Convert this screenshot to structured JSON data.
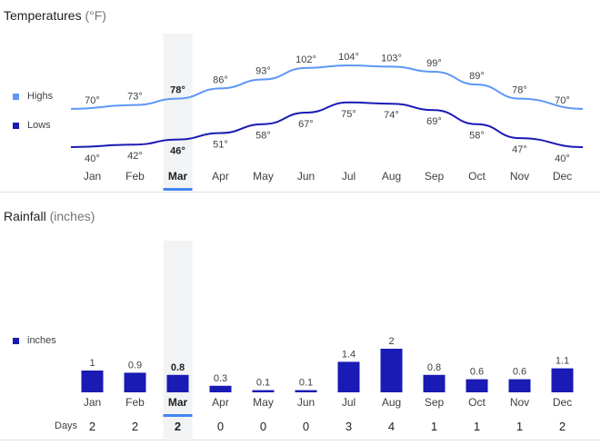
{
  "temperature": {
    "title": "Temperatures",
    "unit": "(°F)",
    "legend": [
      {
        "label": "Highs",
        "color": "#5e97f6"
      },
      {
        "label": "Lows",
        "color": "#1a1ab4"
      }
    ],
    "selected_month": "Mar"
  },
  "rainfall": {
    "title": "Rainfall",
    "unit": "(inches)",
    "legend_label": "inches",
    "bar_color": "#1a1ab4",
    "days_label": "Days",
    "days": [
      2,
      2,
      2,
      0,
      0,
      0,
      3,
      4,
      1,
      1,
      1,
      2
    ]
  },
  "chart_data": [
    {
      "type": "line",
      "title": "Temperatures",
      "categories": [
        "Jan",
        "Feb",
        "Mar",
        "Apr",
        "May",
        "Jun",
        "Jul",
        "Aug",
        "Sep",
        "Oct",
        "Nov",
        "Dec"
      ],
      "series": [
        {
          "name": "Highs",
          "values": [
            70,
            73,
            78,
            86,
            93,
            102,
            104,
            103,
            99,
            89,
            78,
            70
          ],
          "color": "#5e97f6"
        },
        {
          "name": "Lows",
          "values": [
            40,
            42,
            46,
            51,
            58,
            67,
            75,
            74,
            69,
            58,
            47,
            40
          ],
          "color": "#1a1ab4"
        }
      ],
      "value_suffix": "°",
      "grid": false,
      "legend_position": "left"
    },
    {
      "type": "bar",
      "title": "Rainfall",
      "categories": [
        "Jan",
        "Feb",
        "Mar",
        "Apr",
        "May",
        "Jun",
        "Jul",
        "Aug",
        "Sep",
        "Oct",
        "Nov",
        "Dec"
      ],
      "series": [
        {
          "name": "inches",
          "values": [
            1,
            0.9,
            0.8,
            0.3,
            0.1,
            0.1,
            1.4,
            2,
            0.8,
            0.6,
            0.6,
            1.1
          ],
          "color": "#1a1ab4"
        }
      ],
      "grid": false,
      "legend_position": "left"
    }
  ]
}
